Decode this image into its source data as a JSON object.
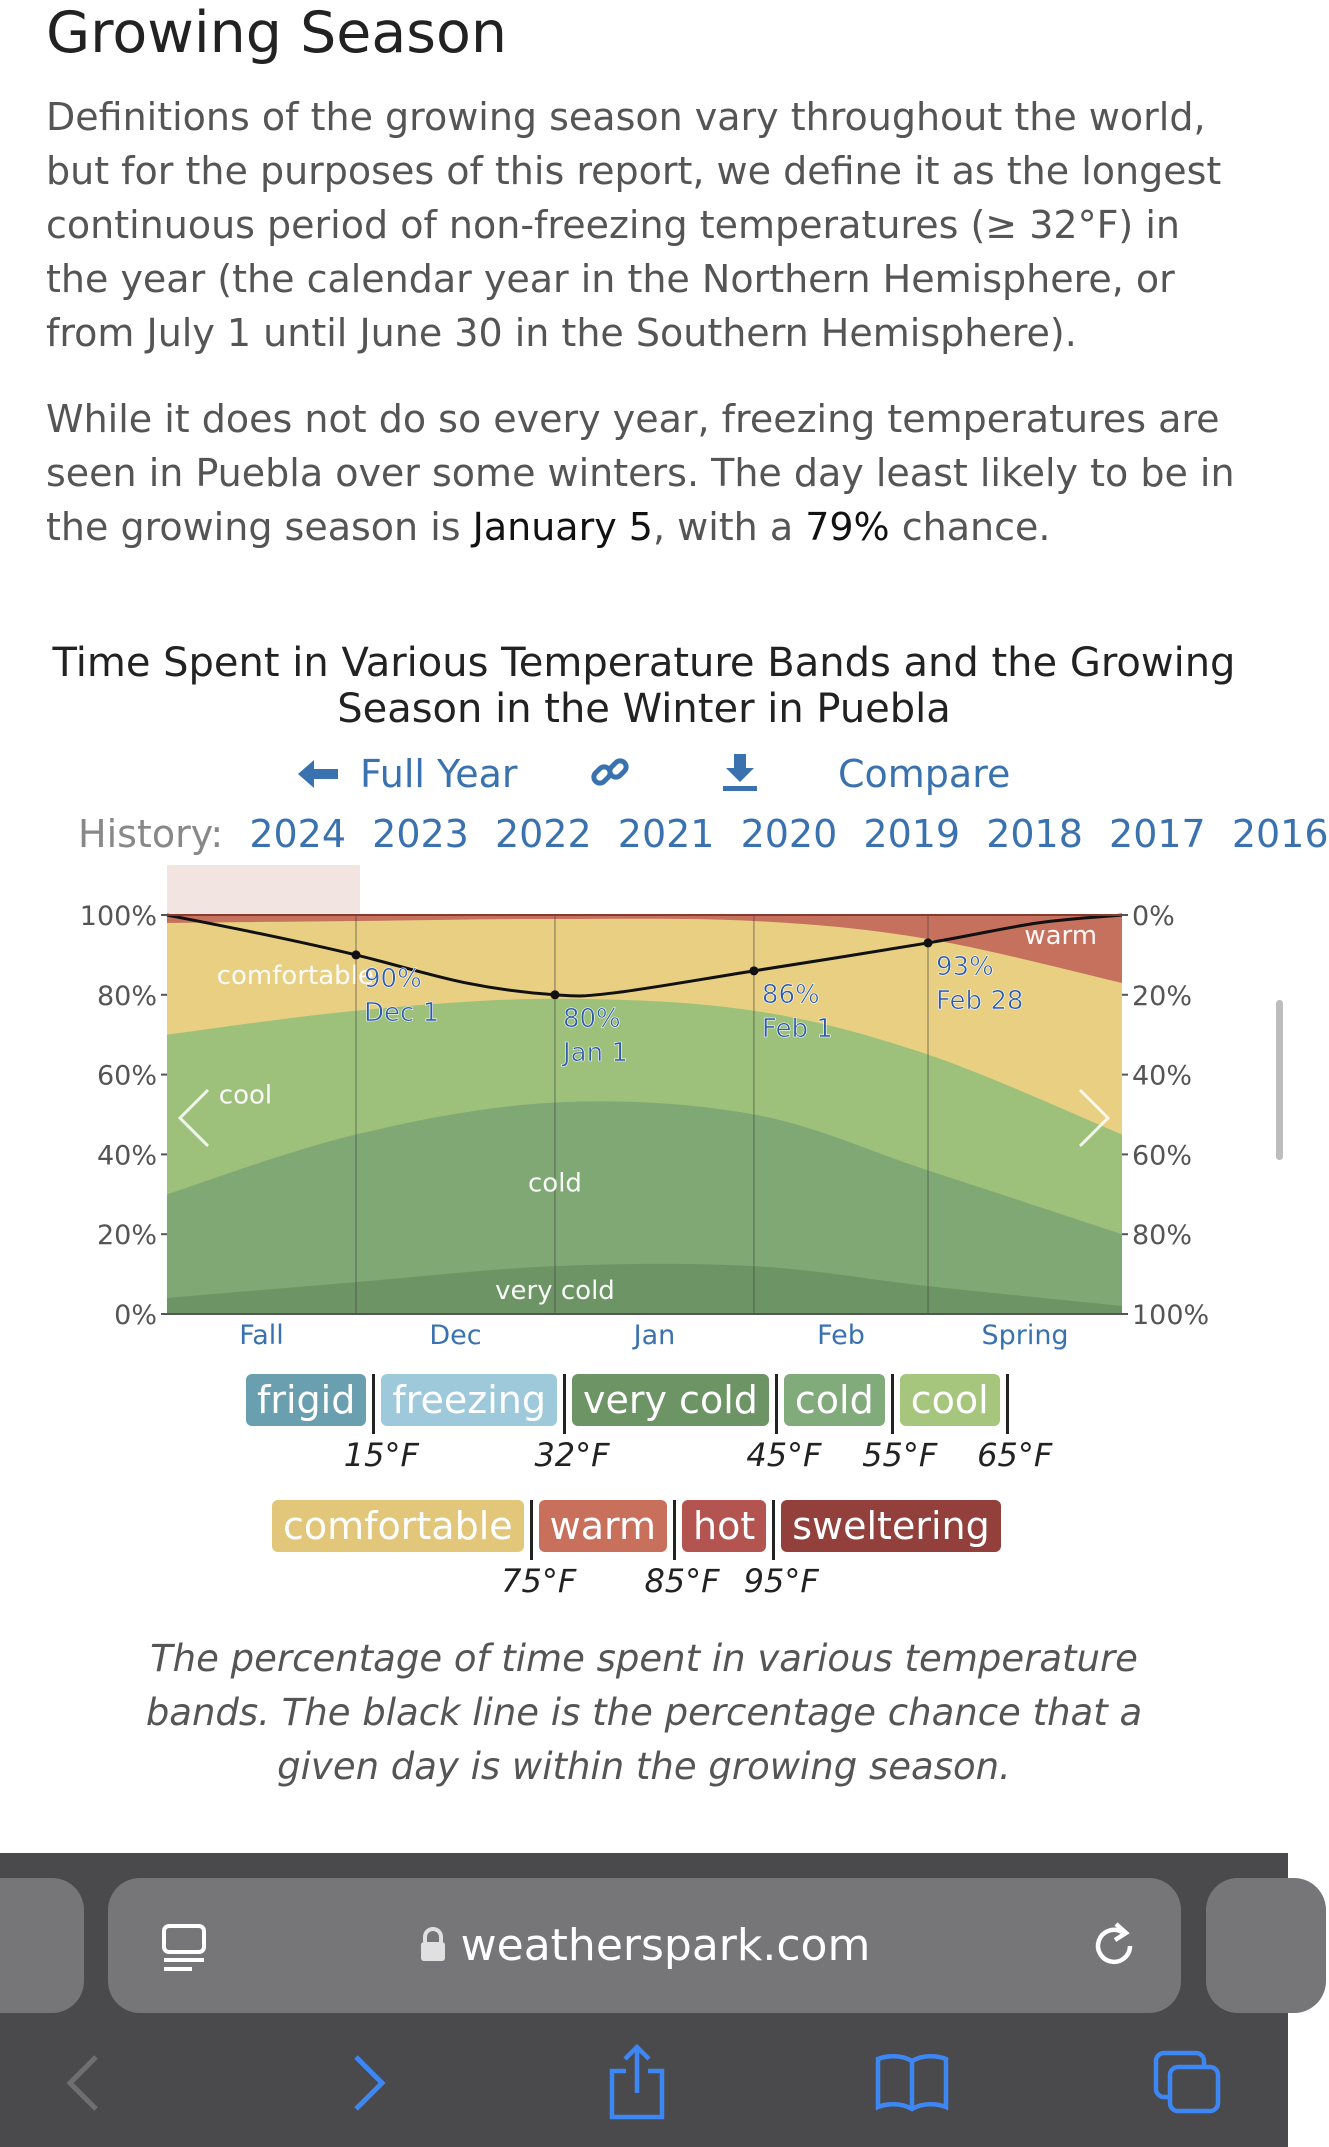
{
  "article": {
    "heading": "Growing Season",
    "paragraph1": "Definitions of the growing season vary throughout the world, but for the purposes of this report, we define it as the longest continuous period of non-freezing temperatures (≥ 32°F) in the year (the calendar year in the Northern Hemisphere, or from July 1 until June 30 in the Southern Hemisphere).",
    "paragraph2_prefix": "While it does not do so every year, freezing temperatures are seen in Puebla over some winters. The day least likely to be in the growing season is ",
    "paragraph2_date": "January 5",
    "paragraph2_mid": ", with a ",
    "paragraph2_pct": "79%",
    "paragraph2_suffix": " chance."
  },
  "chart_toolbar": {
    "full_year_label": "Full Year",
    "compare_label": "Compare",
    "link_icon": "link-icon",
    "download_icon": "download-icon",
    "back_arrow_icon": "arrow-left-icon"
  },
  "history": {
    "label": "History:",
    "years": [
      "2024",
      "2023",
      "2022",
      "2021",
      "2020",
      "2019",
      "2018",
      "2017",
      "2016"
    ]
  },
  "chart_data": {
    "type": "area",
    "title": "Time Spent in Various Temperature Bands and the Growing Season in the Winter in Puebla",
    "x_labels": [
      "Fall",
      "Dec",
      "Jan",
      "Feb",
      "Spring"
    ],
    "left_axis_ticks": [
      "100%",
      "80%",
      "60%",
      "40%",
      "20%",
      "0%"
    ],
    "right_axis_ticks": [
      "0%",
      "20%",
      "40%",
      "60%",
      "80%",
      "100%"
    ],
    "ylim": [
      0,
      100
    ],
    "x_days": [
      0,
      38,
      78,
      118,
      153,
      192
    ],
    "bands": [
      {
        "name": "very cold",
        "color": "#6d9465",
        "top": [
          4,
          8,
          12,
          12,
          7,
          2
        ],
        "label": "very cold"
      },
      {
        "name": "cold",
        "color": "#7fa874",
        "top": [
          30,
          45,
          53,
          50,
          36,
          20
        ],
        "label": "cold"
      },
      {
        "name": "cool",
        "color": "#9dc17a",
        "top": [
          70,
          76,
          79,
          76,
          65,
          45
        ],
        "label": "cool"
      },
      {
        "name": "comfortable",
        "color": "#e8cf82",
        "top": [
          98,
          98.5,
          99,
          98.5,
          94,
          83
        ],
        "label": "comfortable"
      },
      {
        "name": "warm",
        "color": "#c6705e",
        "top": [
          100,
          100,
          100,
          100,
          100,
          100
        ],
        "label": "warm"
      }
    ],
    "growing_season": {
      "x": [
        0,
        20,
        38,
        60,
        78,
        90,
        118,
        153,
        175,
        192
      ],
      "y": [
        100,
        95,
        90,
        83,
        80,
        80.5,
        86,
        93,
        98,
        100
      ]
    },
    "annotations": [
      {
        "pct": "90%",
        "date": "Dec 1",
        "x": 38,
        "y": 90
      },
      {
        "pct": "80%",
        "date": "Jan 1",
        "x": 78,
        "y": 80
      },
      {
        "pct": "86%",
        "date": "Feb 1",
        "x": 118,
        "y": 86
      },
      {
        "pct": "93%",
        "date": "Feb 28",
        "x": 153,
        "y": 93
      }
    ],
    "highlight_year": "2024",
    "nav_prev_icon": "chevron-left-icon",
    "nav_next_icon": "chevron-right-icon"
  },
  "legend": {
    "row1": [
      {
        "label": "frigid",
        "color": "#6a9fb0"
      },
      {
        "label": "freezing",
        "color": "#9ec9da"
      },
      {
        "label": "very cold",
        "color": "#6d9465"
      },
      {
        "label": "cold",
        "color": "#82ab7c"
      },
      {
        "label": "cool",
        "color": "#a6c67e"
      }
    ],
    "row1_temps": [
      "15°F",
      "32°F",
      "45°F",
      "55°F",
      "65°F"
    ],
    "row2": [
      {
        "label": "comfortable",
        "color": "#e2c77a"
      },
      {
        "label": "warm",
        "color": "#c8705c"
      },
      {
        "label": "hot",
        "color": "#b45451"
      },
      {
        "label": "sweltering",
        "color": "#93403c"
      }
    ],
    "row2_temps": [
      "75°F",
      "85°F",
      "95°F"
    ]
  },
  "caption": "The percentage of time spent in various temperature bands. The black line is the percentage chance that a given day is within the growing season.",
  "browser": {
    "url": "weatherspark.com",
    "lock_icon": "lock-icon",
    "reader_icon": "reader-icon",
    "reload_icon": "reload-icon",
    "back_icon": "back-arrow-icon",
    "forward_icon": "forward-arrow-icon",
    "share_icon": "share-icon",
    "bookmarks_icon": "bookmarks-icon",
    "tabs_icon": "tabs-icon"
  }
}
